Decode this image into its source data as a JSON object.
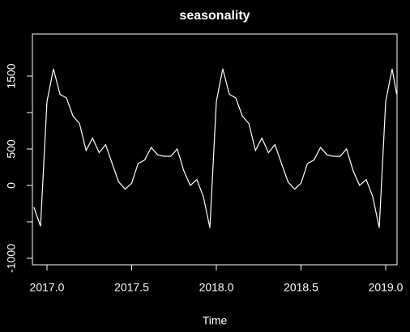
{
  "chart_data": {
    "type": "line",
    "title": "seasonality",
    "x_label": "Time",
    "x": [
      2016.923,
      2016.962,
      2017,
      2017.038,
      2017.077,
      2017.115,
      2017.154,
      2017.192,
      2017.231,
      2017.269,
      2017.308,
      2017.346,
      2017.385,
      2017.423,
      2017.462,
      2017.5,
      2017.538,
      2017.577,
      2017.615,
      2017.654,
      2017.692,
      2017.731,
      2017.769,
      2017.808,
      2017.846,
      2017.885,
      2017.923,
      2017.962,
      2018,
      2018.038,
      2018.077,
      2018.115,
      2018.154,
      2018.192,
      2018.231,
      2018.269,
      2018.308,
      2018.346,
      2018.385,
      2018.423,
      2018.462,
      2018.5,
      2018.538,
      2018.577,
      2018.615,
      2018.654,
      2018.692,
      2018.731,
      2018.769,
      2018.808,
      2018.846,
      2018.885,
      2018.923,
      2018.962,
      2019,
      2019.038,
      2019.065
    ],
    "series": [
      {
        "color": "#ffffff",
        "values": [
          -300,
          -560,
          1150,
          1600,
          1250,
          1200,
          950,
          850,
          480,
          650,
          450,
          560,
          300,
          50,
          -50,
          30,
          300,
          350,
          520,
          420,
          400,
          400,
          500,
          200,
          0,
          80,
          -150,
          -580,
          1150,
          1600,
          1250,
          1200,
          950,
          850,
          480,
          650,
          450,
          560,
          300,
          50,
          -50,
          30,
          300,
          350,
          520,
          420,
          400,
          400,
          500,
          200,
          0,
          80,
          -150,
          -580,
          1150,
          1600,
          1250
        ]
      }
    ],
    "xlim": [
      2016.914,
      2019.067
    ],
    "xticks": [
      {
        "value": 2017,
        "label": "2017.0"
      },
      {
        "value": 2017.5,
        "label": "2017.5"
      },
      {
        "value": 2018,
        "label": "2018.0"
      },
      {
        "value": 2018.5,
        "label": "2018.5"
      },
      {
        "value": 2019,
        "label": "2019.0"
      }
    ],
    "ylim": [
      -1089,
      2078
    ],
    "yticks": [
      -1000,
      0,
      500,
      1500
    ],
    "yticks_unlabeled": [
      -500,
      1000
    ],
    "background": "#000000"
  }
}
